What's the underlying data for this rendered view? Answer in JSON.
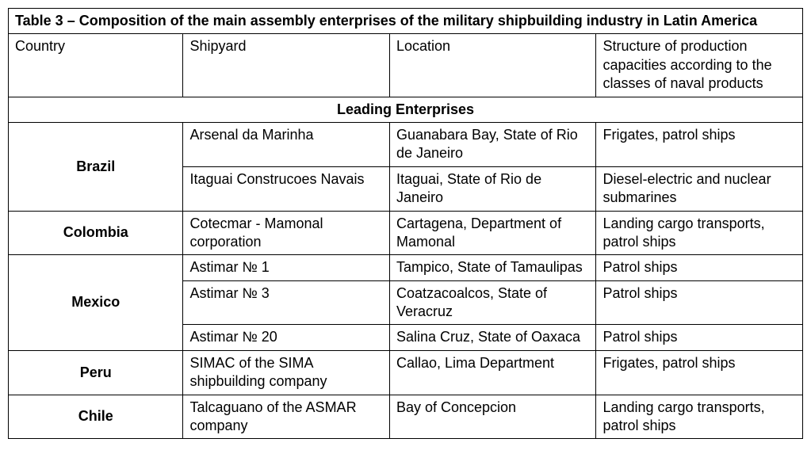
{
  "table": {
    "title": "Table 3 – Composition of the main assembly enterprises of the military shipbuilding industry in Latin America",
    "columns": [
      "Country",
      "Shipyard",
      "Location",
      "Structure of production capacities according to the classes of naval products"
    ],
    "section_header": "Leading Enterprises",
    "groups": [
      {
        "country": "Brazil",
        "rows": [
          {
            "shipyard": "Arsenal da Marinha",
            "location": "Guanabara Bay, State of Rio de Janeiro",
            "products": "Frigates, patrol ships"
          },
          {
            "shipyard": "Itaguai Construcoes Navais",
            "location": "Itaguai, State of Rio de Janeiro",
            "products": "Diesel-electric and nuclear submarines"
          }
        ]
      },
      {
        "country": "Colombia",
        "rows": [
          {
            "shipyard": "Cotecmar - Mamonal corporation",
            "location": "Cartagena, Department of Mamonal",
            "products": "Landing cargo transports, patrol ships"
          }
        ]
      },
      {
        "country": "Mexico",
        "rows": [
          {
            "shipyard": "Astimar № 1",
            "location": "Tampico, State of Tamaulipas",
            "products": "Patrol ships"
          },
          {
            "shipyard": "Astimar № 3",
            "location": "Coatzacoalcos, State of Veracruz",
            "products": "Patrol ships"
          },
          {
            "shipyard": "Astimar № 20",
            "location": "Salina Cruz, State of Oaxaca",
            "products": "Patrol ships"
          }
        ]
      },
      {
        "country": "Peru",
        "rows": [
          {
            "shipyard": "SIMAC of the SIMA shipbuilding company",
            "location": "Callao, Lima Department",
            "products": "Frigates, patrol ships"
          }
        ]
      },
      {
        "country": "Chile",
        "rows": [
          {
            "shipyard": "Talcaguano of the ASMAR company",
            "location": "Bay of Concepcion",
            "products": "Landing cargo transports, patrol ships"
          }
        ]
      }
    ],
    "styling": {
      "border_color": "#000000",
      "background_color": "#ffffff",
      "text_color": "#000000",
      "font_family": "Arial",
      "font_size_pt": 13,
      "header_font_weight": "bold",
      "country_align": "center",
      "col_widths_pct": [
        22,
        26,
        26,
        26
      ]
    }
  }
}
